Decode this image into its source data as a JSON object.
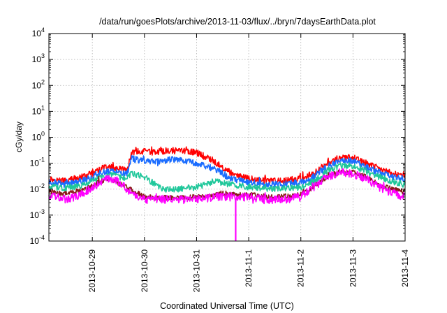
{
  "chart_data": {
    "type": "line",
    "title": "/data/run/goesPlots/archive/2013-11-03/flux/../bryn/7daysEarthData.plot",
    "xlabel": "Coordinated Universal Time (UTC)",
    "ylabel": "cGy/day",
    "y_scale": "log",
    "ylim": [
      0.0001,
      10000
    ],
    "xlim": [
      "2013-10-28 04:00",
      "2013-11-04 00:00"
    ],
    "x_ticks": [
      "2013-10-29",
      "2013-10-30",
      "2013-10-31",
      "2013-11-1",
      "2013-11-2",
      "2013-11-3",
      "2013-11-4"
    ],
    "y_ticks": [
      {
        "base": "10",
        "exp": "-4",
        "value": 0.0001
      },
      {
        "base": "10",
        "exp": "-3",
        "value": 0.001
      },
      {
        "base": "10",
        "exp": "-2",
        "value": 0.01
      },
      {
        "base": "10",
        "exp": "-1",
        "value": 0.1
      },
      {
        "base": "10",
        "exp": "0",
        "value": 1
      },
      {
        "base": "10",
        "exp": "1",
        "value": 10
      },
      {
        "base": "10",
        "exp": "2",
        "value": 100
      },
      {
        "base": "10",
        "exp": "3",
        "value": 1000
      },
      {
        "base": "10",
        "exp": "4",
        "value": 10000
      }
    ],
    "grid": true,
    "legend": "none",
    "series": [
      {
        "color": "#ff0000",
        "noise": 0.13,
        "x": [
          "2013-10-28 04:00",
          "2013-10-28 08:00",
          "2013-10-28 12:00",
          "2013-10-28 16:00",
          "2013-10-28 20:00",
          "2013-10-29 00:00",
          "2013-10-29 04:00",
          "2013-10-29 08:00",
          "2013-10-29 12:00",
          "2013-10-29 16:00",
          "2013-10-29 18:00",
          "2013-10-29 20:00",
          "2013-10-30 00:00",
          "2013-10-30 04:00",
          "2013-10-30 08:00",
          "2013-10-30 12:00",
          "2013-10-30 16:00",
          "2013-10-30 20:00",
          "2013-10-31 00:00",
          "2013-10-31 04:00",
          "2013-10-31 08:00",
          "2013-10-31 12:00",
          "2013-10-31 16:00",
          "2013-10-31 20:00",
          "2013-11-01 00:00",
          "2013-11-01 06:00",
          "2013-11-01 12:00",
          "2013-11-01 18:00",
          "2013-11-02 00:00",
          "2013-11-02 06:00",
          "2013-11-02 12:00",
          "2013-11-02 18:00",
          "2013-11-03 00:00",
          "2013-11-03 06:00",
          "2013-11-03 12:00",
          "2013-11-03 18:00",
          "2013-11-04 00:00"
        ],
        "y": [
          0.025,
          0.022,
          0.02,
          0.025,
          0.03,
          0.04,
          0.06,
          0.07,
          0.06,
          0.05,
          0.25,
          0.28,
          0.28,
          0.26,
          0.3,
          0.3,
          0.32,
          0.3,
          0.25,
          0.18,
          0.12,
          0.07,
          0.04,
          0.03,
          0.025,
          0.022,
          0.02,
          0.022,
          0.025,
          0.04,
          0.1,
          0.16,
          0.16,
          0.1,
          0.06,
          0.04,
          0.035
        ]
      },
      {
        "color": "#1a6cff",
        "noise": 0.13,
        "x": [
          "2013-10-28 04:00",
          "2013-10-28 08:00",
          "2013-10-28 12:00",
          "2013-10-28 16:00",
          "2013-10-28 20:00",
          "2013-10-29 00:00",
          "2013-10-29 04:00",
          "2013-10-29 08:00",
          "2013-10-29 12:00",
          "2013-10-29 16:00",
          "2013-10-29 18:00",
          "2013-10-29 20:00",
          "2013-10-30 00:00",
          "2013-10-30 04:00",
          "2013-10-30 08:00",
          "2013-10-30 12:00",
          "2013-10-30 16:00",
          "2013-10-30 20:00",
          "2013-10-31 00:00",
          "2013-10-31 04:00",
          "2013-10-31 08:00",
          "2013-10-31 12:00",
          "2013-10-31 16:00",
          "2013-10-31 20:00",
          "2013-11-01 00:00",
          "2013-11-01 06:00",
          "2013-11-01 12:00",
          "2013-11-01 18:00",
          "2013-11-02 00:00",
          "2013-11-02 06:00",
          "2013-11-02 12:00",
          "2013-11-02 18:00",
          "2013-11-03 00:00",
          "2013-11-03 06:00",
          "2013-11-03 12:00",
          "2013-11-03 18:00",
          "2013-11-04 00:00"
        ],
        "y": [
          0.018,
          0.016,
          0.015,
          0.018,
          0.022,
          0.03,
          0.045,
          0.05,
          0.045,
          0.04,
          0.15,
          0.14,
          0.12,
          0.12,
          0.12,
          0.14,
          0.15,
          0.12,
          0.1,
          0.08,
          0.06,
          0.04,
          0.025,
          0.022,
          0.018,
          0.016,
          0.015,
          0.016,
          0.018,
          0.03,
          0.07,
          0.12,
          0.12,
          0.07,
          0.045,
          0.03,
          0.025
        ]
      },
      {
        "color": "#1fc79a",
        "noise": 0.12,
        "x": [
          "2013-10-28 04:00",
          "2013-10-28 12:00",
          "2013-10-28 20:00",
          "2013-10-29 04:00",
          "2013-10-29 08:00",
          "2013-10-29 16:00",
          "2013-10-29 18:00",
          "2013-10-30 00:00",
          "2013-10-30 08:00",
          "2013-10-30 16:00",
          "2013-10-31 00:00",
          "2013-10-31 04:00",
          "2013-10-31 08:00",
          "2013-10-31 16:00",
          "2013-11-01 00:00",
          "2013-11-01 12:00",
          "2013-11-02 00:00",
          "2013-11-02 06:00",
          "2013-11-02 12:00",
          "2013-11-02 18:00",
          "2013-11-03 00:00",
          "2013-11-03 06:00",
          "2013-11-03 12:00",
          "2013-11-03 18:00",
          "2013-11-04 00:00"
        ],
        "y": [
          0.012,
          0.011,
          0.014,
          0.03,
          0.035,
          0.025,
          0.04,
          0.03,
          0.01,
          0.01,
          0.012,
          0.015,
          0.02,
          0.015,
          0.012,
          0.01,
          0.012,
          0.02,
          0.05,
          0.08,
          0.08,
          0.05,
          0.03,
          0.02,
          0.015
        ]
      },
      {
        "color": "#8b1a1a",
        "noise": 0.1,
        "x": [
          "2013-10-28 04:00",
          "2013-10-28 12:00",
          "2013-10-28 20:00",
          "2013-10-29 04:00",
          "2013-10-29 08:00",
          "2013-10-29 16:00",
          "2013-10-30 00:00",
          "2013-10-30 12:00",
          "2013-10-31 00:00",
          "2013-10-31 12:00",
          "2013-11-01 00:00",
          "2013-11-01 12:00",
          "2013-11-02 00:00",
          "2013-11-02 06:00",
          "2013-11-02 12:00",
          "2013-11-02 18:00",
          "2013-11-03 00:00",
          "2013-11-03 06:00",
          "2013-11-03 12:00",
          "2013-11-03 18:00",
          "2013-11-04 00:00"
        ],
        "y": [
          0.008,
          0.007,
          0.009,
          0.02,
          0.025,
          0.012,
          0.005,
          0.0045,
          0.005,
          0.007,
          0.006,
          0.005,
          0.006,
          0.012,
          0.03,
          0.045,
          0.045,
          0.03,
          0.015,
          0.01,
          0.008
        ]
      },
      {
        "color": "#ff00ff",
        "noise": 0.16,
        "x": [
          "2013-10-28 04:00",
          "2013-10-28 08:00",
          "2013-10-28 12:00",
          "2013-10-28 16:00",
          "2013-10-28 20:00",
          "2013-10-29 00:00",
          "2013-10-29 04:00",
          "2013-10-29 08:00",
          "2013-10-29 12:00",
          "2013-10-29 16:00",
          "2013-10-30 00:00",
          "2013-10-30 08:00",
          "2013-10-30 16:00",
          "2013-10-31 00:00",
          "2013-10-31 08:00",
          "2013-10-31 16:00",
          "2013-11-01 00:00",
          "2013-11-01 08:00",
          "2013-11-01 16:00",
          "2013-11-02 00:00",
          "2013-11-02 06:00",
          "2013-11-02 12:00",
          "2013-11-02 18:00",
          "2013-11-03 00:00",
          "2013-11-03 06:00",
          "2013-11-03 12:00",
          "2013-11-03 18:00",
          "2013-11-04 00:00"
        ],
        "y": [
          0.006,
          0.005,
          0.004,
          0.005,
          0.007,
          0.012,
          0.02,
          0.025,
          0.02,
          0.01,
          0.004,
          0.004,
          0.004,
          0.004,
          0.005,
          0.005,
          0.005,
          0.004,
          0.004,
          0.005,
          0.012,
          0.03,
          0.045,
          0.04,
          0.025,
          0.012,
          0.007,
          0.005
        ]
      }
    ],
    "annotations": [
      {
        "series_color": "#ff00ff",
        "x": "2013-10-31 18:00",
        "y_min": 0.0001,
        "note": "sharp drop below axis"
      }
    ]
  }
}
